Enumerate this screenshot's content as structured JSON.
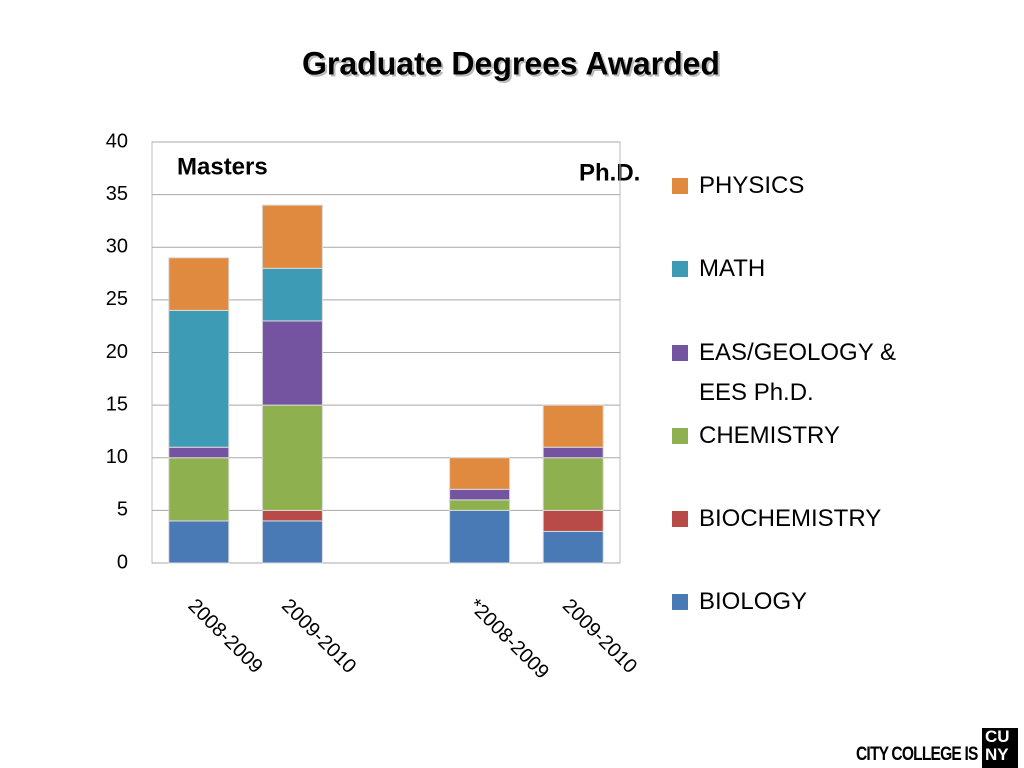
{
  "chart_data": {
    "type": "stacked_bar",
    "title": "Graduate Degrees Awarded",
    "annotations": [
      "Masters",
      "Ph.D."
    ],
    "categories": [
      "2008-2009",
      "2009-2010",
      null,
      "*2008-2009",
      "2009-2010"
    ],
    "series": [
      {
        "name": "BIOLOGY",
        "color": "#4a7ab5",
        "values": [
          4,
          4,
          null,
          5,
          3
        ]
      },
      {
        "name": "BIOCHEMISTRY",
        "color": "#b84a47",
        "values": [
          0,
          1,
          null,
          0,
          2
        ]
      },
      {
        "name": "CHEMISTRY",
        "color": "#8fb04f",
        "values": [
          6,
          10,
          null,
          1,
          5
        ]
      },
      {
        "name": "EAS/GEOLOGY & EES Ph.D.",
        "color": "#7454a0",
        "values": [
          1,
          8,
          null,
          1,
          1
        ]
      },
      {
        "name": "MATH",
        "color": "#3e9bb6",
        "values": [
          13,
          5,
          null,
          0,
          0
        ]
      },
      {
        "name": "PHYSICS",
        "color": "#e08a3f",
        "values": [
          5,
          6,
          null,
          3,
          4
        ]
      }
    ],
    "ylim": [
      0,
      40
    ],
    "yticks": [
      0,
      5,
      10,
      15,
      20,
      25,
      30,
      35,
      40
    ],
    "grid": true,
    "legend": "right"
  },
  "logo": {
    "text": "CITY COLLEGE IS",
    "mark_top": "CU",
    "mark_bottom": "NY"
  }
}
